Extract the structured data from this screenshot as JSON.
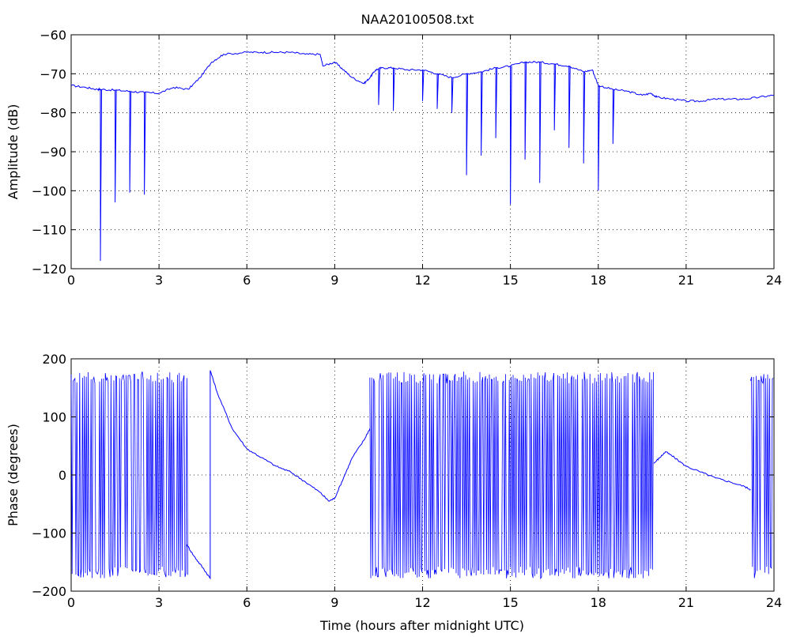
{
  "figure": {
    "title": "NAA20100508.txt"
  },
  "colors": {
    "series": "#0000ff",
    "axes": "#000000",
    "grid": "#000000",
    "background": "#ffffff"
  },
  "chart_data": [
    {
      "type": "line",
      "title": "NAA20100508.txt",
      "xlabel": "",
      "ylabel": "Amplitude (dB)",
      "xlim": [
        0,
        24
      ],
      "ylim": [
        -120,
        -60
      ],
      "xticks": [
        "0",
        "3",
        "6",
        "9",
        "12",
        "15",
        "18",
        "21",
        "24"
      ],
      "yticks": [
        "-60",
        "-70",
        "-80",
        "-90",
        "-100",
        "-110",
        "-120"
      ],
      "grid": true,
      "series": [
        {
          "x": [
            0,
            0.5,
            0.9,
            1.0,
            1.5,
            2.0,
            2.5,
            3.0,
            3.5,
            4.0,
            4.4,
            4.8,
            5.2,
            6.0,
            6.5,
            7.0,
            7.5,
            8.0,
            8.5,
            8.6,
            9.0,
            9.3,
            9.6,
            10.0,
            10.2,
            10.4,
            10.6,
            11.0,
            11.5,
            12.0,
            12.5,
            13.0,
            13.5,
            14.0,
            14.5,
            15.0,
            15.5,
            16.0,
            16.5,
            17.0,
            17.5,
            17.8,
            18.0,
            18.5,
            19.0,
            19.5,
            19.8,
            20.0,
            20.5,
            21.0,
            21.5,
            22.0,
            22.5,
            23.0,
            23.5,
            24.0
          ],
          "values": [
            -73,
            -73.5,
            -74,
            -74,
            -74.2,
            -74.5,
            -74.8,
            -75,
            -73.5,
            -74,
            -71,
            -67,
            -65,
            -64.5,
            -64.5,
            -64.5,
            -64.5,
            -65,
            -65,
            -68,
            -67,
            -69,
            -71,
            -72.5,
            -71,
            -69,
            -68.5,
            -68.5,
            -69,
            -69,
            -70,
            -71,
            -70,
            -69.5,
            -68.5,
            -68,
            -67,
            -67,
            -67.5,
            -68,
            -69.5,
            -69,
            -73,
            -74,
            -74.5,
            -75.5,
            -75,
            -76,
            -76.5,
            -77,
            -77,
            -76.5,
            -76.5,
            -76.5,
            -76,
            -75.5
          ]
        }
      ],
      "spikes": [
        {
          "x": 1.0,
          "y": -118
        },
        {
          "x": 1.5,
          "y": -103
        },
        {
          "x": 2.0,
          "y": -100.5
        },
        {
          "x": 2.5,
          "y": -101
        },
        {
          "x": 10.5,
          "y": -78
        },
        {
          "x": 11.0,
          "y": -79.5
        },
        {
          "x": 12.0,
          "y": -77
        },
        {
          "x": 12.5,
          "y": -79
        },
        {
          "x": 13.0,
          "y": -80
        },
        {
          "x": 13.5,
          "y": -96
        },
        {
          "x": 14.0,
          "y": -91
        },
        {
          "x": 14.5,
          "y": -86.5
        },
        {
          "x": 15.0,
          "y": -103.5
        },
        {
          "x": 15.5,
          "y": -92
        },
        {
          "x": 16.0,
          "y": -98
        },
        {
          "x": 16.5,
          "y": -84.5
        },
        {
          "x": 17.0,
          "y": -89
        },
        {
          "x": 17.5,
          "y": -93
        },
        {
          "x": 18.0,
          "y": -100
        },
        {
          "x": 18.5,
          "y": -88
        }
      ]
    },
    {
      "type": "line",
      "title": "",
      "xlabel": "Time (hours after midnight UTC)",
      "ylabel": "Phase (degrees)",
      "xlim": [
        0,
        24
      ],
      "ylim": [
        -200,
        200
      ],
      "xticks": [
        "0",
        "3",
        "6",
        "9",
        "12",
        "15",
        "18",
        "21",
        "24"
      ],
      "yticks": [
        "200",
        "100",
        "0",
        "-100",
        "-200"
      ],
      "grid": true,
      "wrapped_segments": [
        {
          "x_start": 0,
          "x_end": 4.0,
          "min": -178,
          "max": 178
        },
        {
          "x_start": 10.2,
          "x_end": 19.9,
          "min": -178,
          "max": 178
        },
        {
          "x_start": 23.2,
          "x_end": 24.0,
          "min": -178,
          "max": 178
        }
      ],
      "series": [
        {
          "x": [
            3.95,
            4.2,
            4.5,
            4.75,
            4.75,
            5.0,
            5.5,
            6.0,
            6.5,
            7.0,
            7.5,
            8.0,
            8.5,
            8.8,
            9.0,
            9.3,
            9.6,
            10.0,
            10.2
          ],
          "values": [
            -120,
            -140,
            -160,
            -178,
            180,
            140,
            80,
            45,
            30,
            15,
            5,
            -12,
            -30,
            -45,
            -40,
            -5,
            30,
            60,
            80
          ]
        },
        {
          "x": [
            19.9,
            20.1,
            20.3,
            20.6,
            21.0,
            21.5,
            22.0,
            22.5,
            23.0,
            23.2
          ],
          "values": [
            20,
            30,
            40,
            30,
            15,
            5,
            -5,
            -12,
            -20,
            -25
          ]
        }
      ]
    }
  ]
}
